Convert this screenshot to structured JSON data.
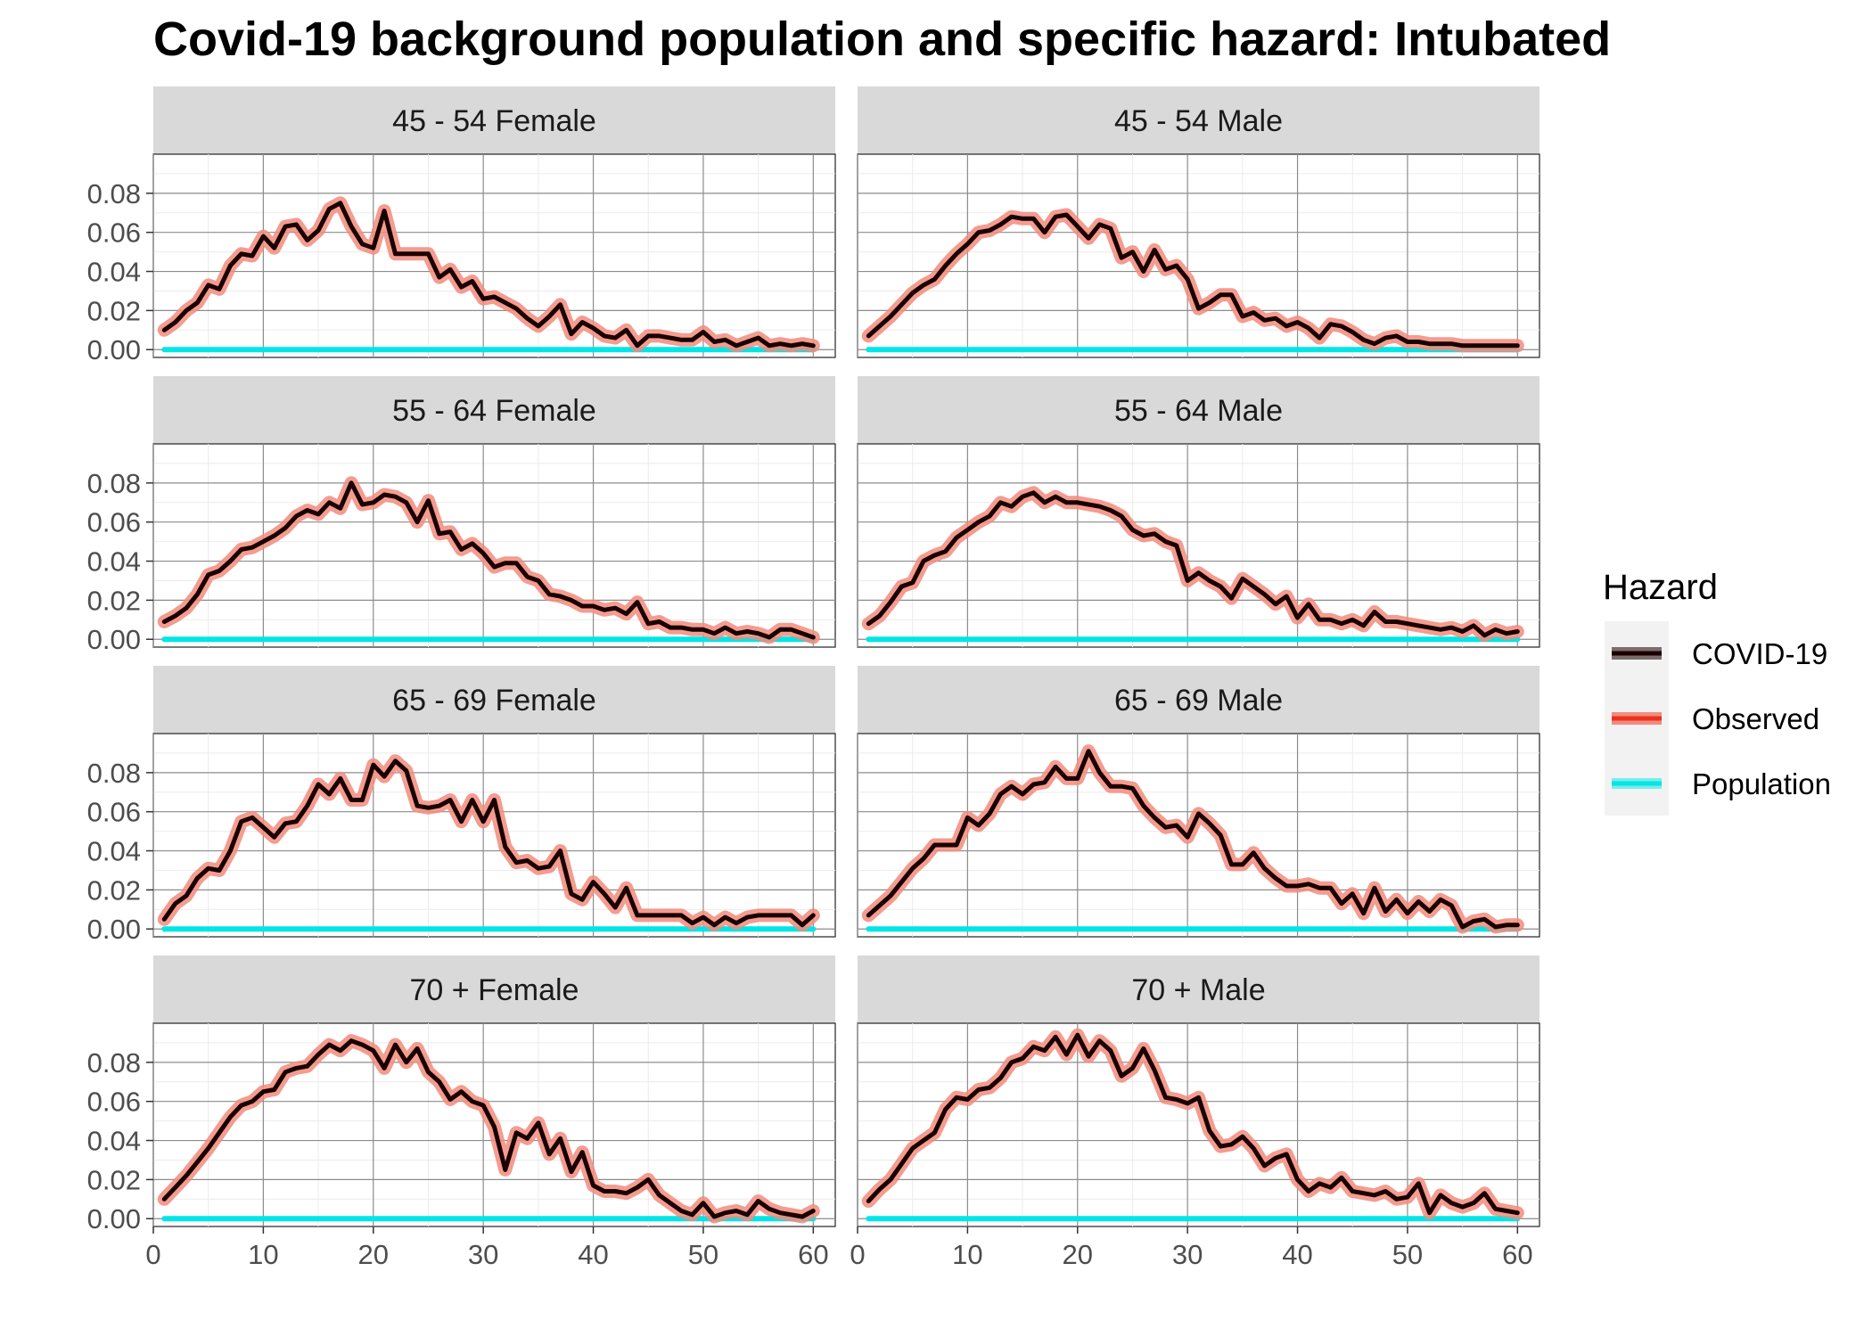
{
  "chart_data": {
    "type": "line",
    "title": "Covid-19 background population and specific hazard: Intubated",
    "xlabel": "",
    "ylabel": "",
    "xlim": [
      0,
      62
    ],
    "ylim": [
      -0.004,
      0.1
    ],
    "x_ticks": [
      0,
      10,
      20,
      30,
      40,
      50,
      60
    ],
    "y_ticks": [
      0,
      0.02,
      0.04,
      0.06,
      0.08
    ],
    "y_tick_labels": [
      "0.00",
      "0.02",
      "0.04",
      "0.06",
      "0.08"
    ],
    "x_tick_labels": [
      "0",
      "10",
      "20",
      "30",
      "40",
      "50",
      "60"
    ],
    "grid": true,
    "facet_layout": {
      "rows": 4,
      "cols": 2
    },
    "legend": {
      "title": "Hazard",
      "placement": "right",
      "entries": [
        {
          "name": "COVID-19",
          "color": "#1a0000"
        },
        {
          "name": "Observed",
          "color": "#e8321e"
        },
        {
          "name": "Population",
          "color": "#00e5e5"
        }
      ]
    },
    "colors": {
      "covid": "#1a0000",
      "observed": "#f28b7d",
      "population": "#00e5e5"
    },
    "x_start": 1,
    "x_step": 1,
    "population_value": 0,
    "panels": [
      {
        "label": "45 - 54 Female",
        "values": [
          0.01,
          0.014,
          0.02,
          0.024,
          0.033,
          0.031,
          0.043,
          0.049,
          0.048,
          0.058,
          0.052,
          0.063,
          0.064,
          0.056,
          0.061,
          0.072,
          0.075,
          0.063,
          0.054,
          0.052,
          0.071,
          0.049,
          0.049,
          0.049,
          0.049,
          0.037,
          0.041,
          0.032,
          0.035,
          0.026,
          0.027,
          0.024,
          0.021,
          0.016,
          0.012,
          0.017,
          0.023,
          0.008,
          0.014,
          0.011,
          0.007,
          0.006,
          0.01,
          0.002,
          0.007,
          0.007,
          0.006,
          0.005,
          0.005,
          0.009,
          0.004,
          0.005,
          0.002,
          0.004,
          0.006,
          0.002,
          0.003,
          0.002,
          0.003,
          0.002
        ]
      },
      {
        "label": "45 - 54 Male",
        "values": [
          0.007,
          0.012,
          0.017,
          0.023,
          0.029,
          0.033,
          0.036,
          0.043,
          0.049,
          0.054,
          0.06,
          0.061,
          0.064,
          0.068,
          0.067,
          0.067,
          0.06,
          0.068,
          0.069,
          0.063,
          0.057,
          0.064,
          0.062,
          0.047,
          0.05,
          0.04,
          0.051,
          0.041,
          0.043,
          0.036,
          0.021,
          0.024,
          0.028,
          0.028,
          0.017,
          0.019,
          0.015,
          0.016,
          0.012,
          0.014,
          0.011,
          0.006,
          0.013,
          0.012,
          0.009,
          0.005,
          0.003,
          0.006,
          0.007,
          0.004,
          0.004,
          0.003,
          0.003,
          0.003,
          0.002,
          0.002,
          0.002,
          0.002,
          0.002,
          0.002
        ]
      },
      {
        "label": "55 - 64 Female",
        "values": [
          0.009,
          0.012,
          0.016,
          0.023,
          0.033,
          0.035,
          0.04,
          0.046,
          0.047,
          0.05,
          0.053,
          0.057,
          0.063,
          0.066,
          0.064,
          0.07,
          0.067,
          0.08,
          0.069,
          0.07,
          0.074,
          0.073,
          0.07,
          0.06,
          0.071,
          0.054,
          0.055,
          0.046,
          0.049,
          0.044,
          0.037,
          0.039,
          0.039,
          0.032,
          0.03,
          0.023,
          0.022,
          0.02,
          0.017,
          0.017,
          0.015,
          0.016,
          0.013,
          0.019,
          0.008,
          0.009,
          0.006,
          0.006,
          0.005,
          0.005,
          0.003,
          0.006,
          0.003,
          0.004,
          0.003,
          0.001,
          0.005,
          0.005,
          0.003,
          0.001
        ]
      },
      {
        "label": "55 - 64 Male",
        "values": [
          0.008,
          0.012,
          0.019,
          0.027,
          0.029,
          0.04,
          0.043,
          0.045,
          0.052,
          0.056,
          0.06,
          0.063,
          0.07,
          0.068,
          0.073,
          0.075,
          0.07,
          0.073,
          0.07,
          0.07,
          0.069,
          0.068,
          0.066,
          0.063,
          0.056,
          0.053,
          0.054,
          0.05,
          0.048,
          0.03,
          0.034,
          0.03,
          0.027,
          0.021,
          0.031,
          0.027,
          0.023,
          0.018,
          0.022,
          0.011,
          0.018,
          0.01,
          0.01,
          0.008,
          0.01,
          0.007,
          0.014,
          0.009,
          0.009,
          0.008,
          0.007,
          0.006,
          0.005,
          0.006,
          0.004,
          0.007,
          0.002,
          0.005,
          0.003,
          0.004
        ]
      },
      {
        "label": "65 - 69 Female",
        "values": [
          0.005,
          0.013,
          0.017,
          0.026,
          0.031,
          0.03,
          0.04,
          0.055,
          0.057,
          0.052,
          0.047,
          0.054,
          0.055,
          0.063,
          0.074,
          0.069,
          0.077,
          0.066,
          0.066,
          0.084,
          0.078,
          0.086,
          0.081,
          0.063,
          0.062,
          0.063,
          0.066,
          0.055,
          0.066,
          0.055,
          0.066,
          0.042,
          0.034,
          0.035,
          0.031,
          0.032,
          0.04,
          0.018,
          0.015,
          0.024,
          0.018,
          0.011,
          0.021,
          0.007,
          0.007,
          0.007,
          0.007,
          0.007,
          0.003,
          0.006,
          0.002,
          0.006,
          0.003,
          0.006,
          0.007,
          0.007,
          0.007,
          0.007,
          0.002,
          0.007
        ]
      },
      {
        "label": "65 - 69 Male",
        "values": [
          0.007,
          0.012,
          0.017,
          0.024,
          0.031,
          0.036,
          0.043,
          0.043,
          0.043,
          0.057,
          0.053,
          0.059,
          0.069,
          0.073,
          0.069,
          0.074,
          0.075,
          0.083,
          0.077,
          0.077,
          0.091,
          0.08,
          0.073,
          0.073,
          0.072,
          0.063,
          0.057,
          0.052,
          0.053,
          0.047,
          0.059,
          0.054,
          0.048,
          0.033,
          0.033,
          0.039,
          0.031,
          0.026,
          0.022,
          0.022,
          0.023,
          0.021,
          0.021,
          0.013,
          0.018,
          0.008,
          0.021,
          0.009,
          0.015,
          0.008,
          0.014,
          0.009,
          0.015,
          0.012,
          0.001,
          0.004,
          0.005,
          0.001,
          0.002,
          0.002
        ]
      },
      {
        "label": "70 + Female",
        "values": [
          0.01,
          0.016,
          0.022,
          0.029,
          0.036,
          0.044,
          0.052,
          0.058,
          0.06,
          0.065,
          0.066,
          0.075,
          0.077,
          0.078,
          0.084,
          0.089,
          0.086,
          0.091,
          0.089,
          0.086,
          0.077,
          0.089,
          0.08,
          0.087,
          0.075,
          0.07,
          0.061,
          0.065,
          0.06,
          0.058,
          0.047,
          0.025,
          0.044,
          0.041,
          0.049,
          0.033,
          0.041,
          0.024,
          0.034,
          0.017,
          0.014,
          0.014,
          0.013,
          0.016,
          0.02,
          0.012,
          0.008,
          0.004,
          0.002,
          0.008,
          0.001,
          0.003,
          0.004,
          0.002,
          0.009,
          0.005,
          0.003,
          0.002,
          0.001,
          0.004
        ]
      },
      {
        "label": "70 + Male",
        "values": [
          0.009,
          0.015,
          0.02,
          0.028,
          0.036,
          0.04,
          0.044,
          0.056,
          0.062,
          0.061,
          0.066,
          0.067,
          0.072,
          0.08,
          0.082,
          0.088,
          0.086,
          0.093,
          0.084,
          0.094,
          0.083,
          0.091,
          0.086,
          0.073,
          0.077,
          0.087,
          0.076,
          0.062,
          0.061,
          0.059,
          0.062,
          0.045,
          0.037,
          0.038,
          0.042,
          0.036,
          0.027,
          0.031,
          0.033,
          0.02,
          0.014,
          0.018,
          0.016,
          0.021,
          0.014,
          0.013,
          0.012,
          0.014,
          0.01,
          0.011,
          0.018,
          0.003,
          0.012,
          0.008,
          0.006,
          0.008,
          0.013,
          0.005,
          0.004,
          0.003
        ]
      }
    ]
  }
}
